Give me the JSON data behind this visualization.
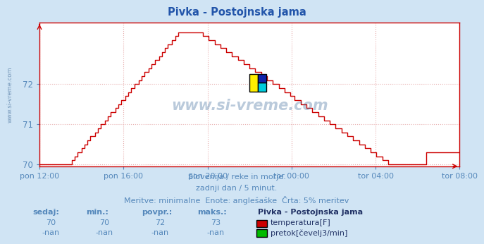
{
  "title": "Pivka - Postojnska jama",
  "bg_color": "#d0e4f4",
  "plot_bg_color": "#ffffff",
  "line_color": "#cc0000",
  "grid_color": "#e8b0b0",
  "grid_style": "--",
  "axis_color": "#cc0000",
  "text_color": "#5588bb",
  "label_color": "#2255aa",
  "ylim": [
    69.95,
    73.55
  ],
  "yticks": [
    70,
    71,
    72
  ],
  "xtick_labels": [
    "pon 12:00",
    "pon 16:00",
    "pon 20:00",
    "tor 00:00",
    "tor 04:00",
    "tor 08:00"
  ],
  "n_points": 289,
  "subtitle_line1": "Slovenija / reke in morje.",
  "subtitle_line2": "zadnji dan / 5 minut.",
  "subtitle_line3": "Meritve: minimalne  Enote: anglešaške  Črta: 5% meritev",
  "legend_title": "Pivka - Postojnska jama",
  "legend_items": [
    {
      "label": "temperatura[F]",
      "color": "#cc0000"
    },
    {
      "label": "pretok[čevelj3/min]",
      "color": "#00bb00"
    }
  ],
  "stats_headers": [
    "sedaj:",
    "min.:",
    "povpr.:",
    "maks.:"
  ],
  "stats_temp": [
    "70",
    "70",
    "72",
    "73"
  ],
  "stats_flow": [
    "-nan",
    "-nan",
    "-nan",
    "-nan"
  ],
  "watermark_text": "www.si-vreme.com",
  "left_label": "www.si-vreme.com"
}
